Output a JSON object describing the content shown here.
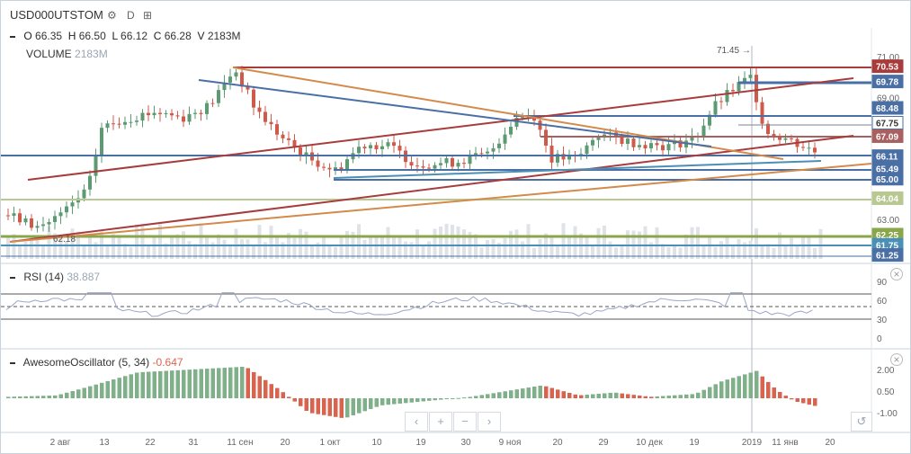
{
  "header": {
    "symbol": "USD000UTSTOM",
    "interval": "D",
    "gear_icon": "gear-icon",
    "settings_icon": "chart-settings-icon"
  },
  "ohlc": {
    "o_label": "O",
    "o": "66.35",
    "h_label": "H",
    "h": "66.50",
    "l_label": "L",
    "l": "66.12",
    "c_label": "C",
    "c": "66.28",
    "v_label": "V",
    "v": "2183M"
  },
  "volume": {
    "label": "VOLUME",
    "value": "2183M"
  },
  "rsi": {
    "label": "RSI (14)",
    "value": "38.887",
    "ticks": [
      "90",
      "60",
      "30",
      "0"
    ]
  },
  "ao": {
    "label": "AwesomeOscillator (5, 34)",
    "value": "-0.647",
    "ticks": [
      "2.00",
      "0.50",
      "-1.00"
    ]
  },
  "annotations": {
    "high": "71.45",
    "low": "62.18"
  },
  "price_axis": {
    "ticks": [
      "71.00",
      "69.00",
      "63.00"
    ],
    "badges": [
      {
        "text": "70.53",
        "color": "#a83c3c",
        "price": 70.53
      },
      {
        "text": "69.78",
        "color": "#4a6fa5",
        "price": 69.78
      },
      {
        "text": "68.48",
        "color": "#4a6fa5",
        "price": 68.48
      },
      {
        "text": "67.75",
        "color": "#ffffff",
        "price": 67.75
      },
      {
        "text": "67.09",
        "color": "#a86060",
        "price": 67.09
      },
      {
        "text": "66.11",
        "color": "#4a6fa5",
        "price": 66.11
      },
      {
        "text": "65.49",
        "color": "#4a6fa5",
        "price": 65.49
      },
      {
        "text": "65.00",
        "color": "#4a6fa5",
        "price": 65.0
      },
      {
        "text": "64.04",
        "color": "#b8c890",
        "price": 64.04
      },
      {
        "text": "62.25",
        "color": "#8aa64a",
        "price": 62.25
      },
      {
        "text": "61.75",
        "color": "#4a8fb5",
        "price": 61.75
      },
      {
        "text": "61.25",
        "color": "#4a6fa5",
        "price": 61.25
      }
    ]
  },
  "time_axis": [
    "2 авг",
    "13",
    "22",
    "31",
    "11 сен",
    "20",
    "1 окт",
    "10",
    "19",
    "30",
    "9 ноя",
    "20",
    "29",
    "10 дек",
    "19",
    "2019",
    "11 янв",
    "20"
  ],
  "nav": {
    "left": "‹",
    "plus": "+",
    "minus": "−",
    "right": "›",
    "reset": "↺"
  },
  "colors": {
    "up": "#5b9a72",
    "down": "#d05a4a",
    "ao_up": "#7fb08a",
    "ao_down": "#d8644f"
  }
}
